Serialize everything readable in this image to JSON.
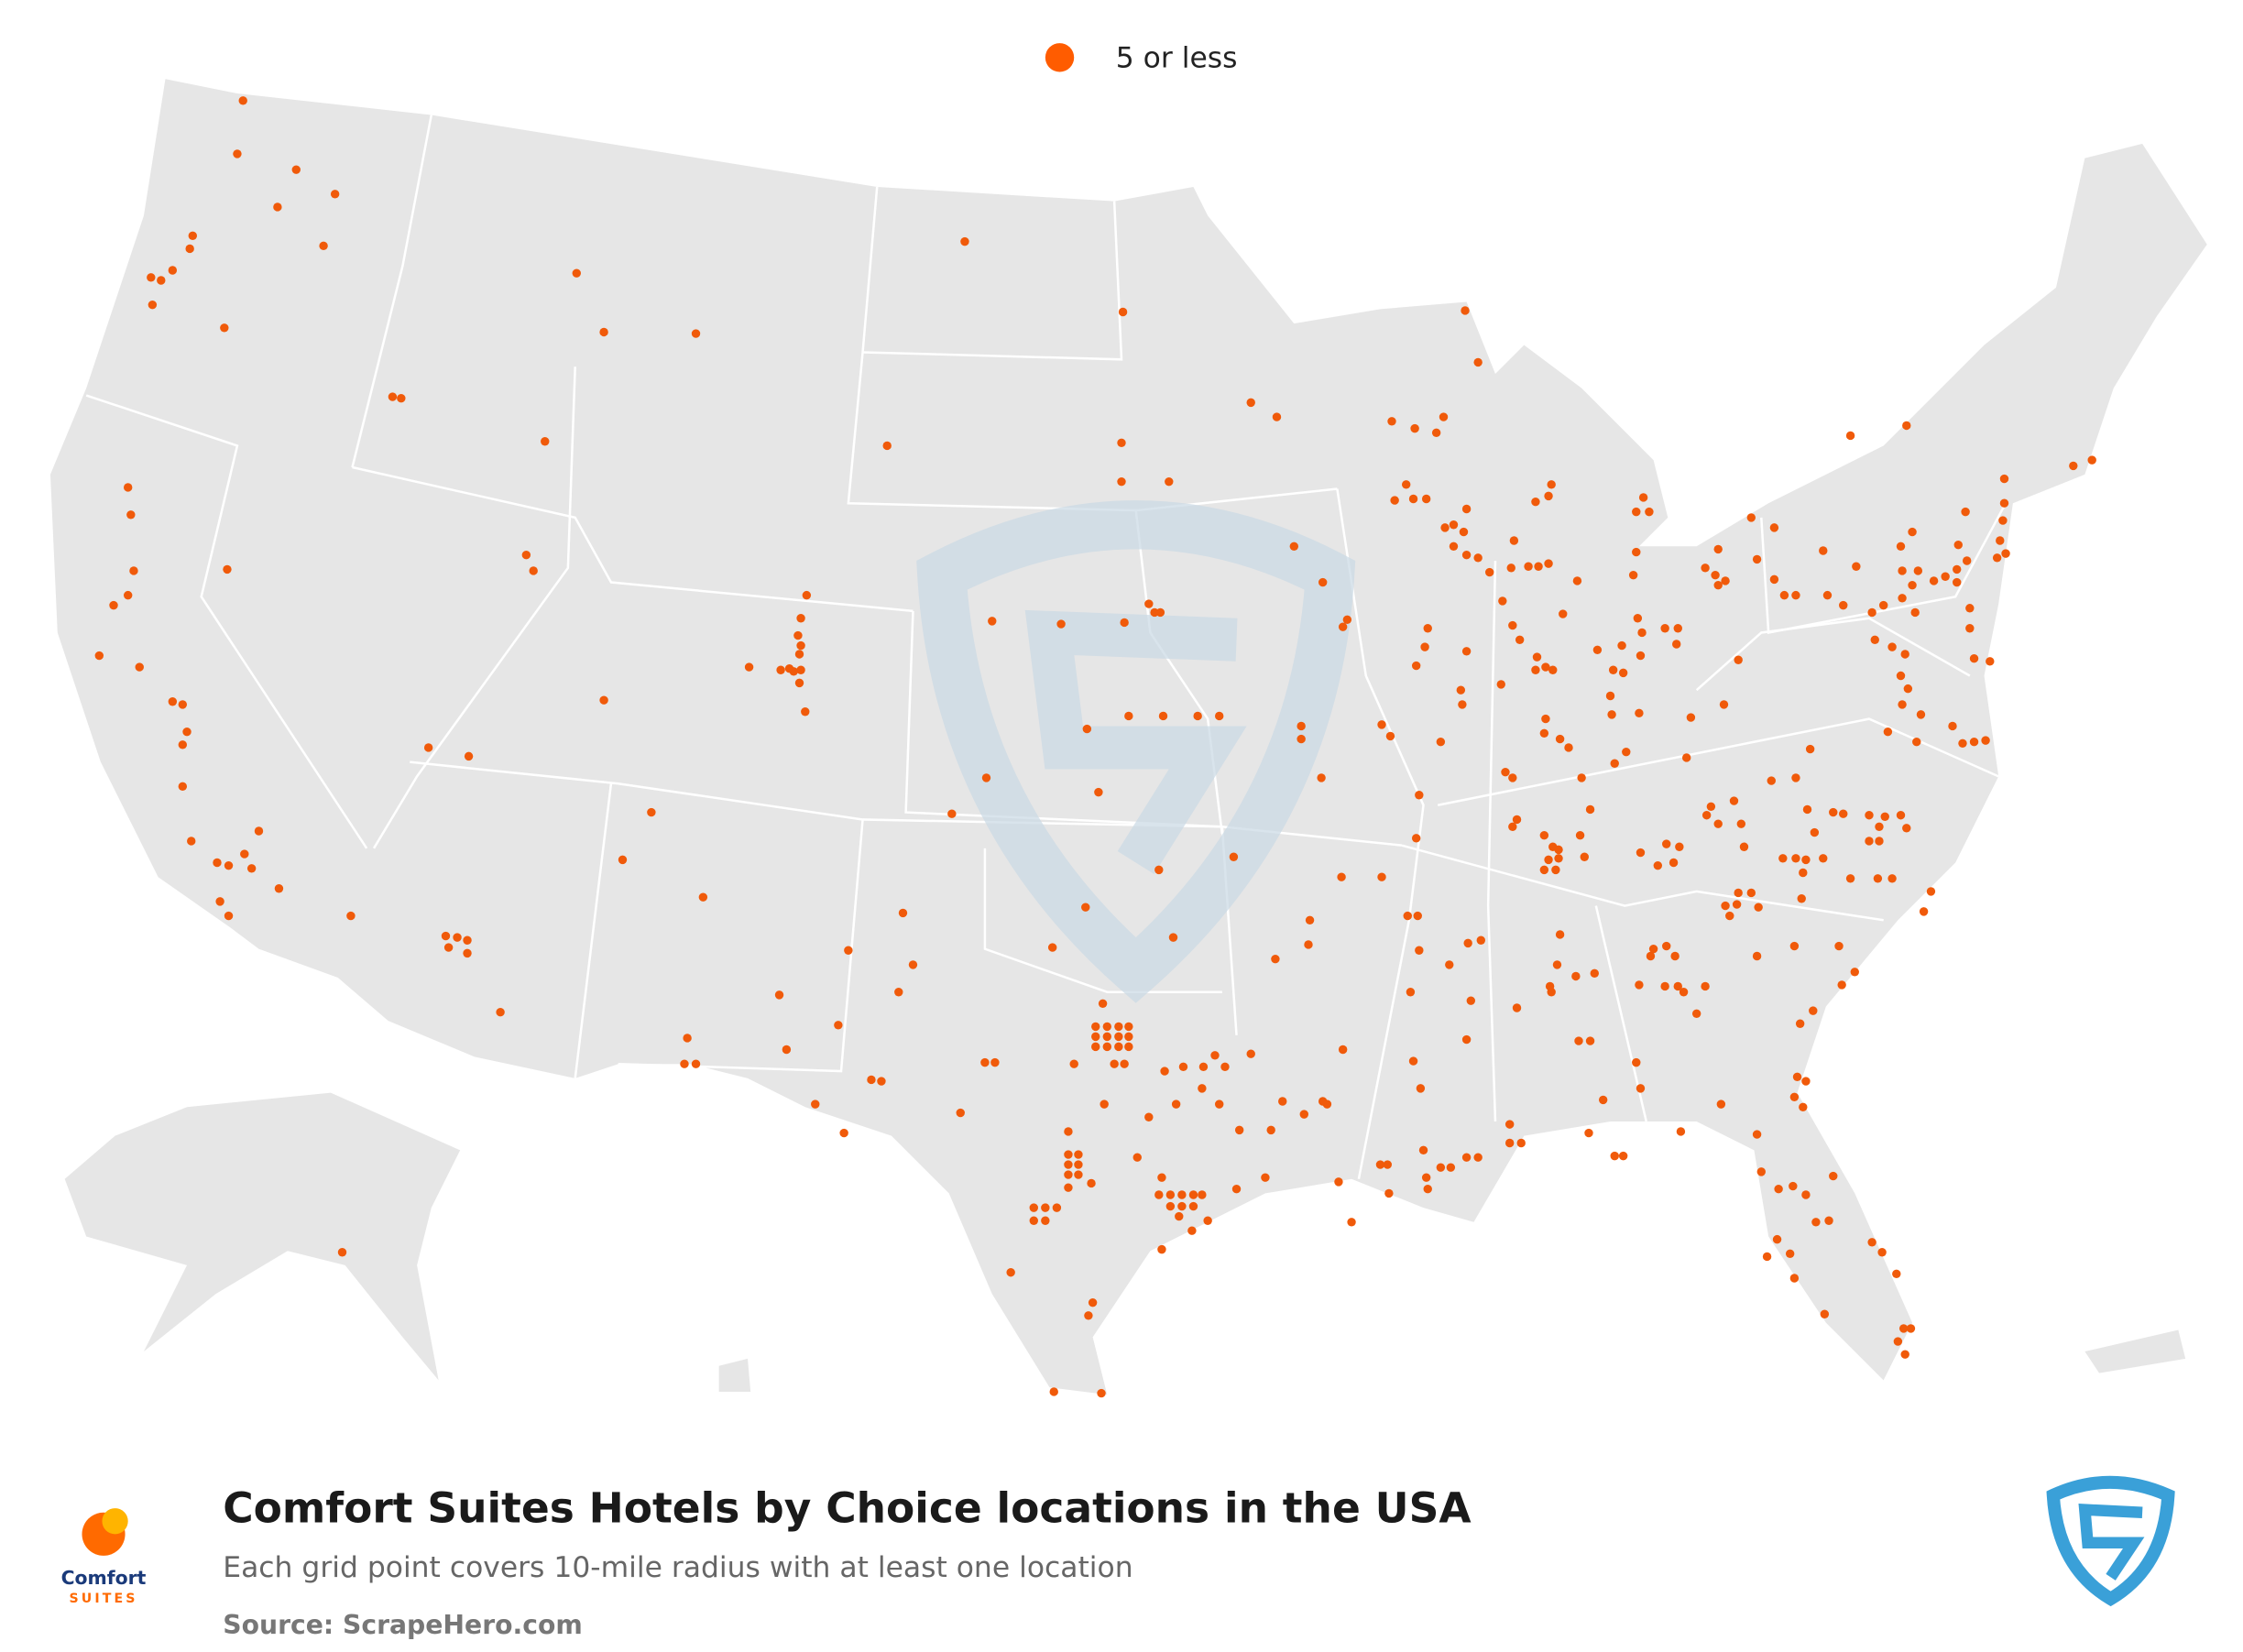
{
  "legend": {
    "label": "5 or less"
  },
  "footer": {
    "title": "Comfort Suites Hotels by Choice locations in the USA",
    "subtitle": "Each grid point covers 10-mile radius with at least one location",
    "source": "Source: ScrapeHero.com",
    "logo_brand": "Comfort",
    "logo_sub": "SUITES"
  }
}
